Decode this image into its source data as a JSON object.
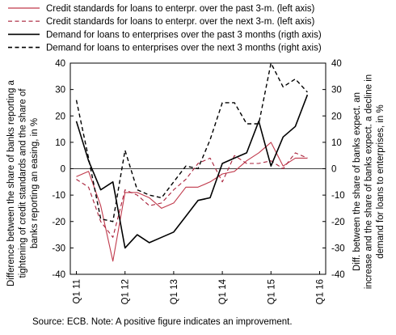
{
  "chart_data": {
    "type": "line",
    "categories": [
      "Q1 11",
      "Q2 11",
      "Q3 11",
      "Q4 11",
      "Q1 12",
      "Q2 12",
      "Q3 12",
      "Q4 12",
      "Q1 13",
      "Q2 13",
      "Q3 13",
      "Q4 13",
      "Q1 14",
      "Q2 14",
      "Q3 14",
      "Q4 14",
      "Q1 15",
      "Q2 15",
      "Q3 15",
      "Q4 15",
      "Q1 16"
    ],
    "x_tick_labels": [
      "Q1 11",
      "Q1 12",
      "Q1 13",
      "Q1 14",
      "Q1 15",
      "Q1 16"
    ],
    "series": [
      {
        "name": "Credit standards for loans to enterpr. over the past 3-m. (left axis)",
        "axis": "left",
        "style": "solid",
        "color": "#c0394b",
        "values": [
          -3,
          -1,
          -14,
          -35,
          -9,
          -9,
          -11,
          -15,
          -13,
          -7,
          -7,
          -5,
          -2,
          -1,
          3,
          6,
          10,
          1,
          4,
          4,
          null
        ]
      },
      {
        "name": "Credit standards for loans to enterpr. over the next 3-m. (left axis)",
        "axis": "left",
        "style": "dashed",
        "color": "#a8203a",
        "values": [
          -4,
          -7,
          -20,
          -26,
          -8,
          -10,
          -14,
          -13,
          -8,
          -4,
          2,
          4,
          -5,
          5,
          2,
          2,
          3,
          0,
          6,
          4,
          null
        ]
      },
      {
        "name": "Demand for loans to enterprises over the past 3 months (rigth axis)",
        "axis": "right",
        "style": "solid",
        "color": "#000000",
        "values": [
          18,
          3,
          -8,
          -5,
          -30,
          -25,
          -28,
          -26,
          -24,
          -18,
          -12,
          -11,
          2,
          4,
          6,
          18,
          1,
          12,
          16,
          28,
          null
        ]
      },
      {
        "name": "Demand for loans to enterprises over the next 3 months (right axis)",
        "axis": "right",
        "style": "dashed",
        "color": "#000000",
        "values": [
          26,
          4,
          -19,
          -20,
          7,
          -8,
          -10,
          -11,
          -5,
          1,
          0,
          11,
          25,
          25,
          17,
          17,
          40,
          31,
          34,
          29,
          null
        ]
      }
    ],
    "left_axis": {
      "label": "Difference between the share of banks reporting a tightening of credit standards and the share of banks reporting an easing, in %",
      "label_lines": [
        "Difference between the share of banks reporting a",
        "tightening of credit standards and the share of",
        "banks reporting an easing, in %"
      ],
      "ylim": [
        -40,
        40
      ],
      "ticks": [
        -40,
        -30,
        -20,
        -10,
        0,
        10,
        20,
        30,
        40
      ]
    },
    "right_axis": {
      "label": "Diff. between the share of banks expect. an increase and the share of banks expect. a decline in demand for loans to enterprises, in %",
      "label_lines": [
        "Diff. between the share of banks expect. an",
        "increase and the share of banks expect. a decline in",
        "demand for loans to enterprises, in %"
      ],
      "ylim": [
        -40,
        40
      ],
      "ticks": [
        -40,
        -30,
        -20,
        -10,
        0,
        10,
        20,
        30,
        40
      ]
    },
    "grid": false,
    "legend_position": "top",
    "source_note": "Source: ECB. Note: A positive figure indicates an improvement."
  }
}
